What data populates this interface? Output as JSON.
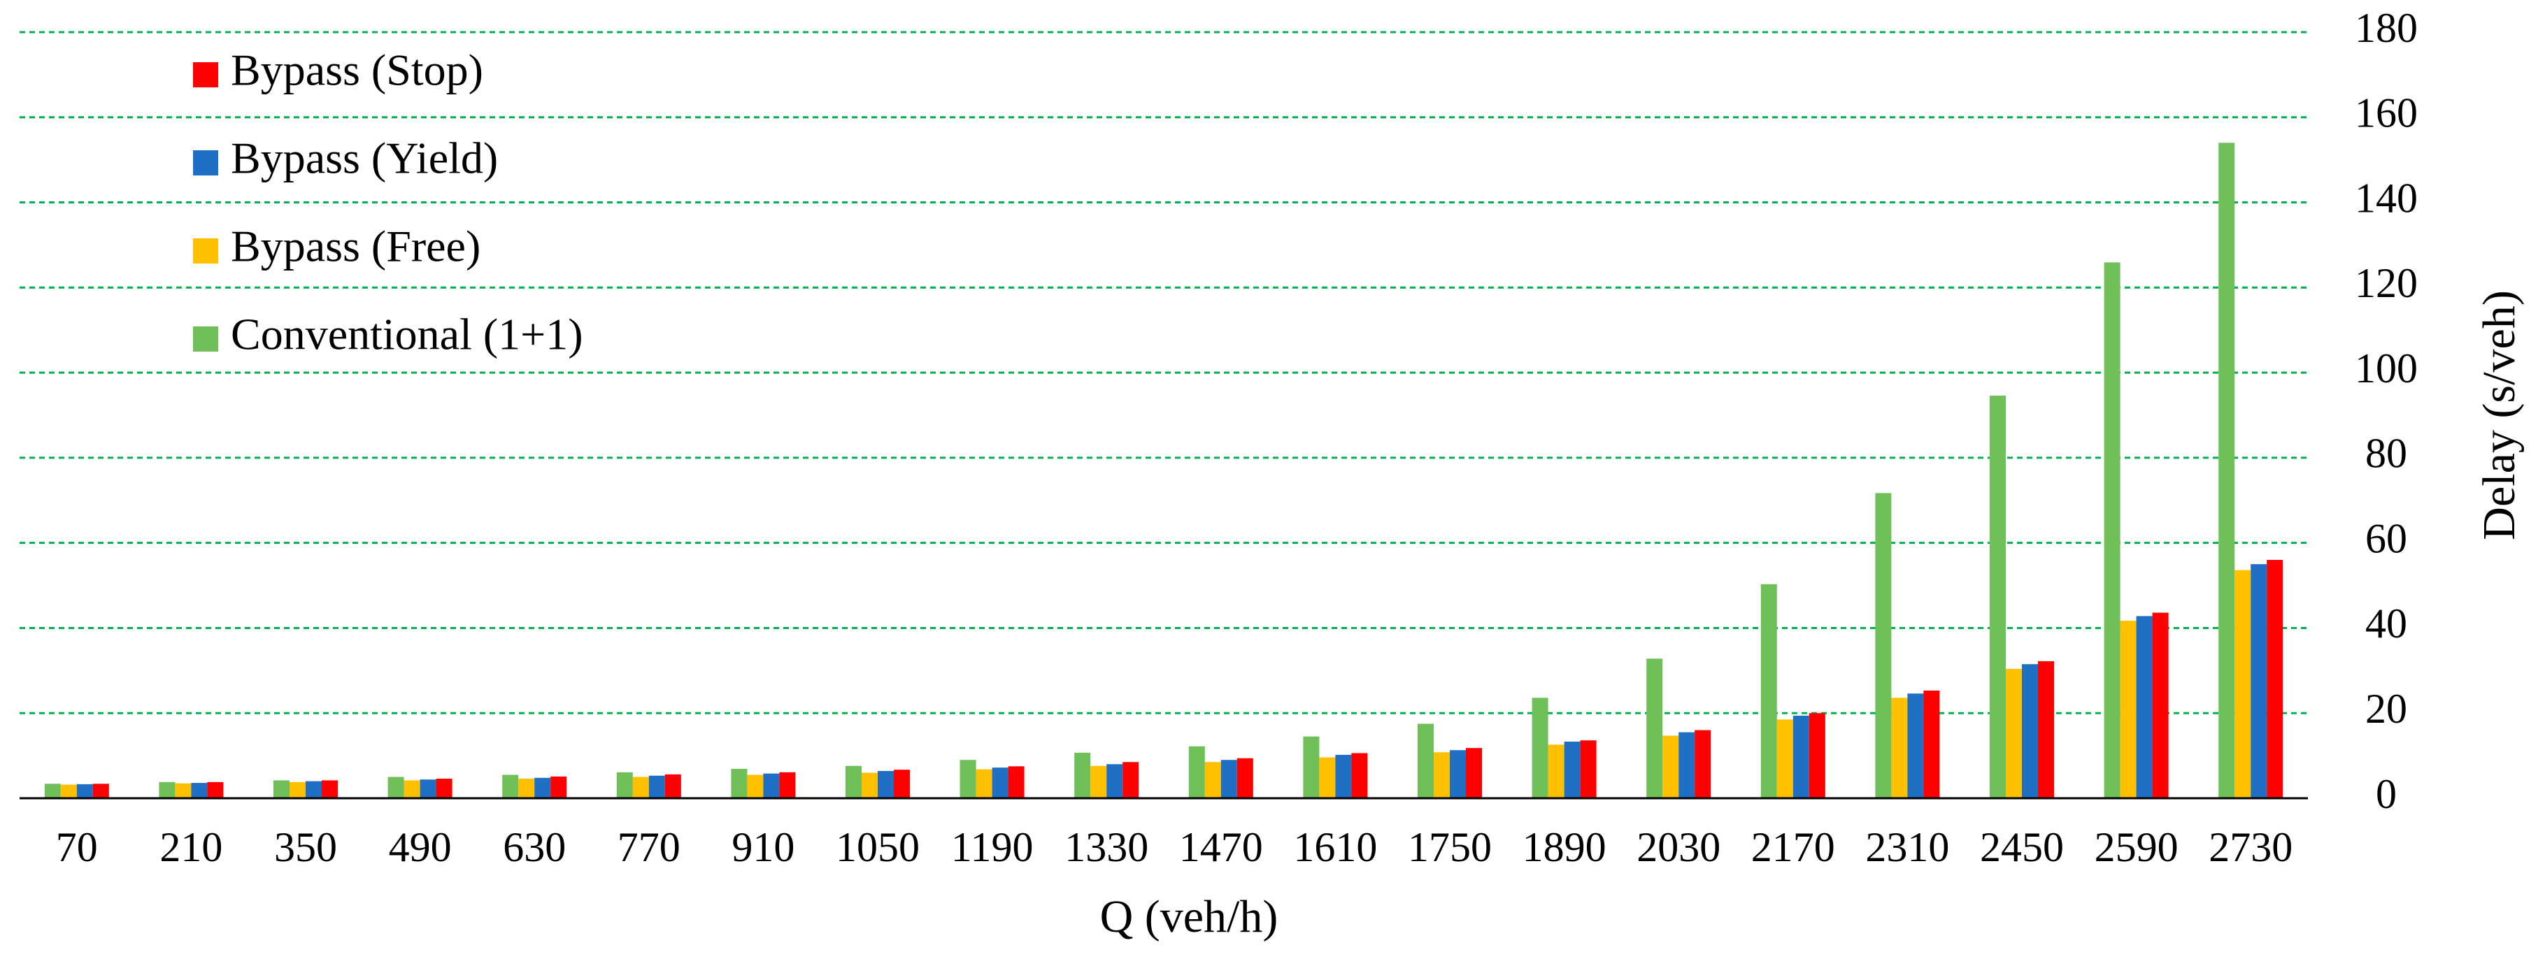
{
  "chart_data": {
    "type": "bar",
    "x_label": "Q (veh/h)",
    "y_label": "Delay (s/veh)",
    "categories": [
      "70",
      "210",
      "350",
      "490",
      "630",
      "770",
      "910",
      "1050",
      "1190",
      "1330",
      "1470",
      "1610",
      "1750",
      "1890",
      "2030",
      "2170",
      "2310",
      "2450",
      "2590",
      "2730"
    ],
    "series": [
      {
        "name": "Conventional (1+1)",
        "color": "#70c05a",
        "values": [
          3.4,
          3.8,
          4.2,
          5,
          5.5,
          6.1,
          6.9,
          7.6,
          9,
          10.7,
          12.2,
          14.5,
          17.5,
          23.6,
          32.8,
          50.3,
          71.7,
          94.6,
          125.9,
          154
        ]
      },
      {
        "name": "Bypass (Free)",
        "color": "#ffc000",
        "values": [
          3.2,
          3.5,
          3.8,
          4.2,
          4.6,
          5,
          5.5,
          6,
          6.8,
          7.6,
          8.5,
          9.6,
          10.8,
          12.6,
          14.7,
          18.5,
          23.6,
          30.4,
          41.7,
          53.6
        ]
      },
      {
        "name": "Bypass (Yield)",
        "color": "#1f6fc5",
        "values": [
          3.3,
          3.6,
          4,
          4.4,
          4.8,
          5.3,
          5.8,
          6.4,
          7.2,
          8,
          9,
          10.2,
          11.3,
          13.3,
          15.5,
          19.4,
          24.6,
          31.5,
          42.8,
          55
        ]
      },
      {
        "name": "Bypass (Stop)",
        "color": "#ff0000",
        "values": [
          3.4,
          3.8,
          4.2,
          4.6,
          5.1,
          5.6,
          6.1,
          6.7,
          7.5,
          8.5,
          9.4,
          10.6,
          11.8,
          13.6,
          16,
          20,
          25.3,
          32.2,
          43.6,
          56
        ]
      }
    ],
    "ylim": [
      0,
      180
    ],
    "yticks": [
      0,
      20,
      40,
      60,
      80,
      100,
      120,
      140,
      160,
      180
    ],
    "y_axis_side": "right",
    "grid": true,
    "grid_color": "#00b050",
    "legend": "upper left"
  }
}
